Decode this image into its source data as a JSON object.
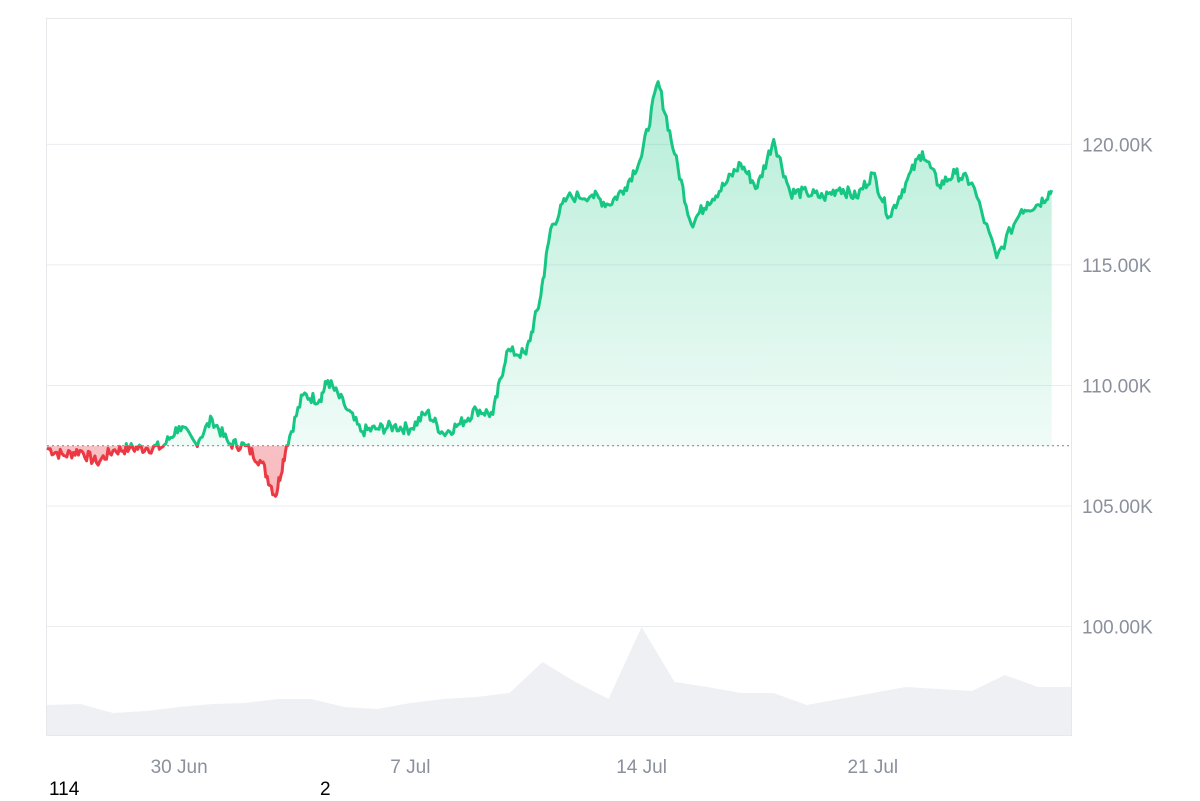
{
  "chart_data": {
    "type": "area",
    "x_axis": {
      "type": "date",
      "ticks": [
        "30 Jun",
        "7 Jul",
        "14 Jul",
        "21 Jul"
      ],
      "tick_dates": [
        "2025-06-30",
        "2025-07-07",
        "2025-07-14",
        "2025-07-21"
      ],
      "range": [
        "2025-06-26",
        "2025-07-27"
      ]
    },
    "y_axis": {
      "position": "right",
      "ticks": [
        "100.00K",
        "105.00K",
        "110.00K",
        "115.00K",
        "120.00K"
      ],
      "tick_values": [
        100000,
        105000,
        110000,
        115000,
        120000
      ],
      "range": [
        95500,
        125200
      ]
    },
    "grid": true,
    "baseline": 107500,
    "colors": {
      "above": "#16c784",
      "below": "#ea3943",
      "grid": "#ebedf0",
      "volume": "#eef0f3",
      "axis_text": "#8a909c"
    },
    "series": [
      {
        "values": [
          [
            "2025-06-26 00:00",
            107400
          ],
          [
            "2025-06-26 12:00",
            107100
          ],
          [
            "2025-06-27 00:00",
            107300
          ],
          [
            "2025-06-27 12:00",
            106800
          ],
          [
            "2025-06-28 00:00",
            107300
          ],
          [
            "2025-06-28 12:00",
            107400
          ],
          [
            "2025-06-29 00:00",
            107400
          ],
          [
            "2025-06-29 12:00",
            107450
          ],
          [
            "2025-06-30 00:00",
            108300
          ],
          [
            "2025-06-30 12:00",
            107600
          ],
          [
            "2025-07-01 00:00",
            108600
          ],
          [
            "2025-07-01 12:00",
            107600
          ],
          [
            "2025-07-02 00:00",
            107500
          ],
          [
            "2025-07-02 12:00",
            106800
          ],
          [
            "2025-07-02 22:00",
            105400
          ],
          [
            "2025-07-03 06:00",
            107500
          ],
          [
            "2025-07-03 18:00",
            109600
          ],
          [
            "2025-07-04 06:00",
            109400
          ],
          [
            "2025-07-04 12:00",
            110200
          ],
          [
            "2025-07-05 00:00",
            109200
          ],
          [
            "2025-07-05 12:00",
            108100
          ],
          [
            "2025-07-06 00:00",
            108200
          ],
          [
            "2025-07-06 12:00",
            108300
          ],
          [
            "2025-07-07 00:00",
            108200
          ],
          [
            "2025-07-07 12:00",
            108900
          ],
          [
            "2025-07-08 00:00",
            108000
          ],
          [
            "2025-07-08 12:00",
            108400
          ],
          [
            "2025-07-09 00:00",
            109000
          ],
          [
            "2025-07-09 12:00",
            108800
          ],
          [
            "2025-07-09 22:00",
            111400
          ],
          [
            "2025-07-10 12:00",
            111300
          ],
          [
            "2025-07-10 22:00",
            113500
          ],
          [
            "2025-07-11 06:00",
            116500
          ],
          [
            "2025-07-11 18:00",
            117800
          ],
          [
            "2025-07-12 12:00",
            117900
          ],
          [
            "2025-07-13 00:00",
            117500
          ],
          [
            "2025-07-13 12:00",
            118200
          ],
          [
            "2025-07-14 00:00",
            119500
          ],
          [
            "2025-07-14 12:00",
            122600
          ],
          [
            "2025-07-15 00:00",
            119600
          ],
          [
            "2025-07-15 12:00",
            116700
          ],
          [
            "2025-07-16 00:00",
            117600
          ],
          [
            "2025-07-16 12:00",
            118300
          ],
          [
            "2025-07-17 00:00",
            119200
          ],
          [
            "2025-07-17 12:00",
            118200
          ],
          [
            "2025-07-18 00:00",
            120200
          ],
          [
            "2025-07-18 12:00",
            118000
          ],
          [
            "2025-07-19 00:00",
            118000
          ],
          [
            "2025-07-19 12:00",
            117800
          ],
          [
            "2025-07-20 00:00",
            118200
          ],
          [
            "2025-07-20 12:00",
            117800
          ],
          [
            "2025-07-21 00:00",
            118800
          ],
          [
            "2025-07-21 12:00",
            117000
          ],
          [
            "2025-07-22 00:00",
            118400
          ],
          [
            "2025-07-22 12:00",
            119700
          ],
          [
            "2025-07-23 00:00",
            118300
          ],
          [
            "2025-07-23 12:00",
            118800
          ],
          [
            "2025-07-24 00:00",
            118400
          ],
          [
            "2025-07-24 18:00",
            115300
          ],
          [
            "2025-07-25 12:00",
            117300
          ],
          [
            "2025-07-26 00:00",
            117500
          ],
          [
            "2025-07-26 10:00",
            118100
          ]
        ]
      }
    ],
    "volume": [
      [
        "2025-06-26",
        0.22
      ],
      [
        "2025-06-27",
        0.23
      ],
      [
        "2025-06-28",
        0.14
      ],
      [
        "2025-06-29",
        0.16
      ],
      [
        "2025-06-30",
        0.2
      ],
      [
        "2025-07-01",
        0.23
      ],
      [
        "2025-07-02",
        0.24
      ],
      [
        "2025-07-03",
        0.28
      ],
      [
        "2025-07-04",
        0.28
      ],
      [
        "2025-07-05",
        0.2
      ],
      [
        "2025-07-06",
        0.18
      ],
      [
        "2025-07-07",
        0.24
      ],
      [
        "2025-07-08",
        0.28
      ],
      [
        "2025-07-09",
        0.3
      ],
      [
        "2025-07-10",
        0.34
      ],
      [
        "2025-07-11",
        0.65
      ],
      [
        "2025-07-12",
        0.45
      ],
      [
        "2025-07-13",
        0.28
      ],
      [
        "2025-07-14",
        1.0
      ],
      [
        "2025-07-15",
        0.45
      ],
      [
        "2025-07-16",
        0.4
      ],
      [
        "2025-07-17",
        0.34
      ],
      [
        "2025-07-18",
        0.34
      ],
      [
        "2025-07-19",
        0.22
      ],
      [
        "2025-07-20",
        0.28
      ],
      [
        "2025-07-21",
        0.34
      ],
      [
        "2025-07-22",
        0.4
      ],
      [
        "2025-07-23",
        0.38
      ],
      [
        "2025-07-24",
        0.36
      ],
      [
        "2025-07-25",
        0.52
      ],
      [
        "2025-07-26",
        0.4
      ]
    ]
  },
  "footer": {
    "left_text": "114",
    "mid_text": "2"
  }
}
